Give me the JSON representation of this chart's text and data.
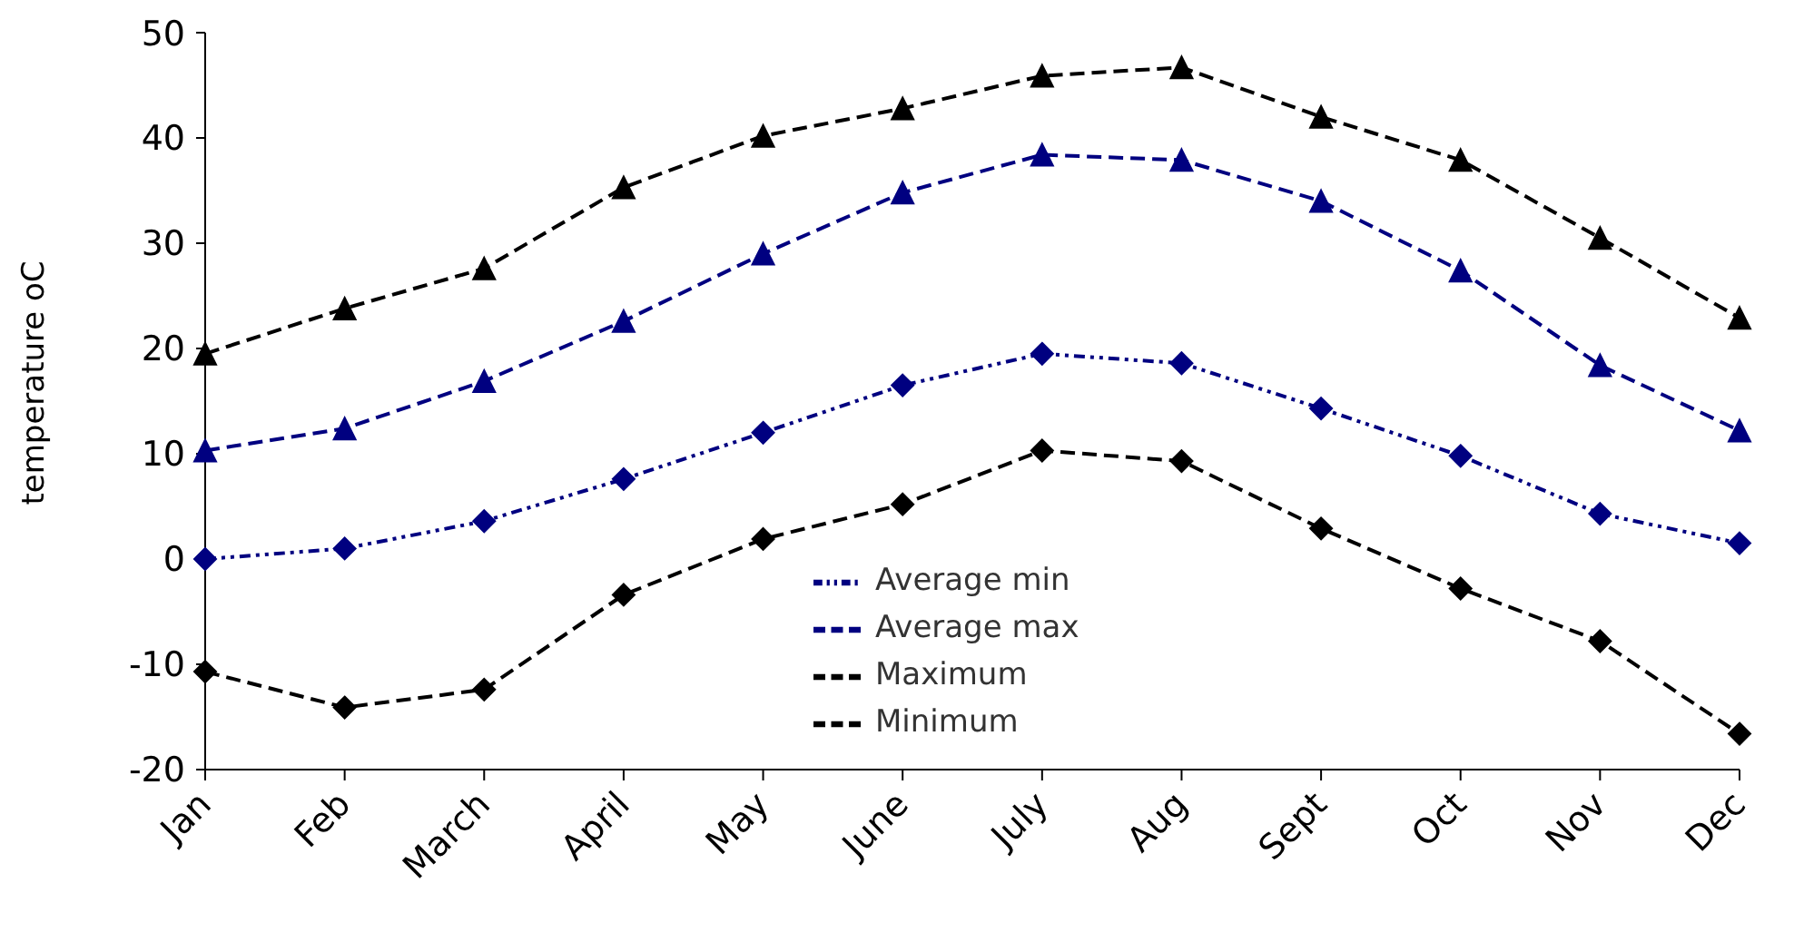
{
  "chart_data": {
    "type": "line",
    "ylabel": "temperature oC",
    "categories": [
      "Jan",
      "Feb",
      "March",
      "April",
      "May",
      "June",
      "July",
      "Aug",
      "Sept",
      "Oct",
      "Nov",
      "Dec"
    ],
    "series": [
      {
        "name": "Average min",
        "color": "#000080",
        "marker": "diamond",
        "line_style": "dotted",
        "values": [
          0,
          1,
          3.6,
          7.6,
          12,
          16.5,
          19.5,
          18.6,
          14.3,
          9.8,
          4.3,
          1.5
        ]
      },
      {
        "name": "Average max",
        "color": "#000080",
        "marker": "triangle",
        "line_style": "dashed",
        "values": [
          10.3,
          12.4,
          16.9,
          22.6,
          29,
          34.8,
          38.4,
          37.9,
          34,
          27.4,
          18.4,
          12.2
        ]
      },
      {
        "name": "Maximum",
        "color": "#000000",
        "marker": "triangle",
        "line_style": "dashed",
        "values": [
          19.5,
          23.8,
          27.6,
          35.3,
          40.2,
          42.8,
          45.9,
          46.7,
          42,
          37.9,
          30.5,
          22.9
        ]
      },
      {
        "name": "Minimum",
        "color": "#000000",
        "marker": "diamond",
        "line_style": "dashed",
        "values": [
          -10.7,
          -14.1,
          -12.4,
          -3.4,
          1.9,
          5.2,
          10.3,
          9.3,
          2.9,
          -2.8,
          -7.8,
          -16.6
        ]
      }
    ],
    "ylim": [
      -20,
      50
    ],
    "yticks": [
      -20,
      -10,
      0,
      10,
      20,
      30,
      40,
      50
    ],
    "grid": false,
    "legend": "bottom"
  }
}
